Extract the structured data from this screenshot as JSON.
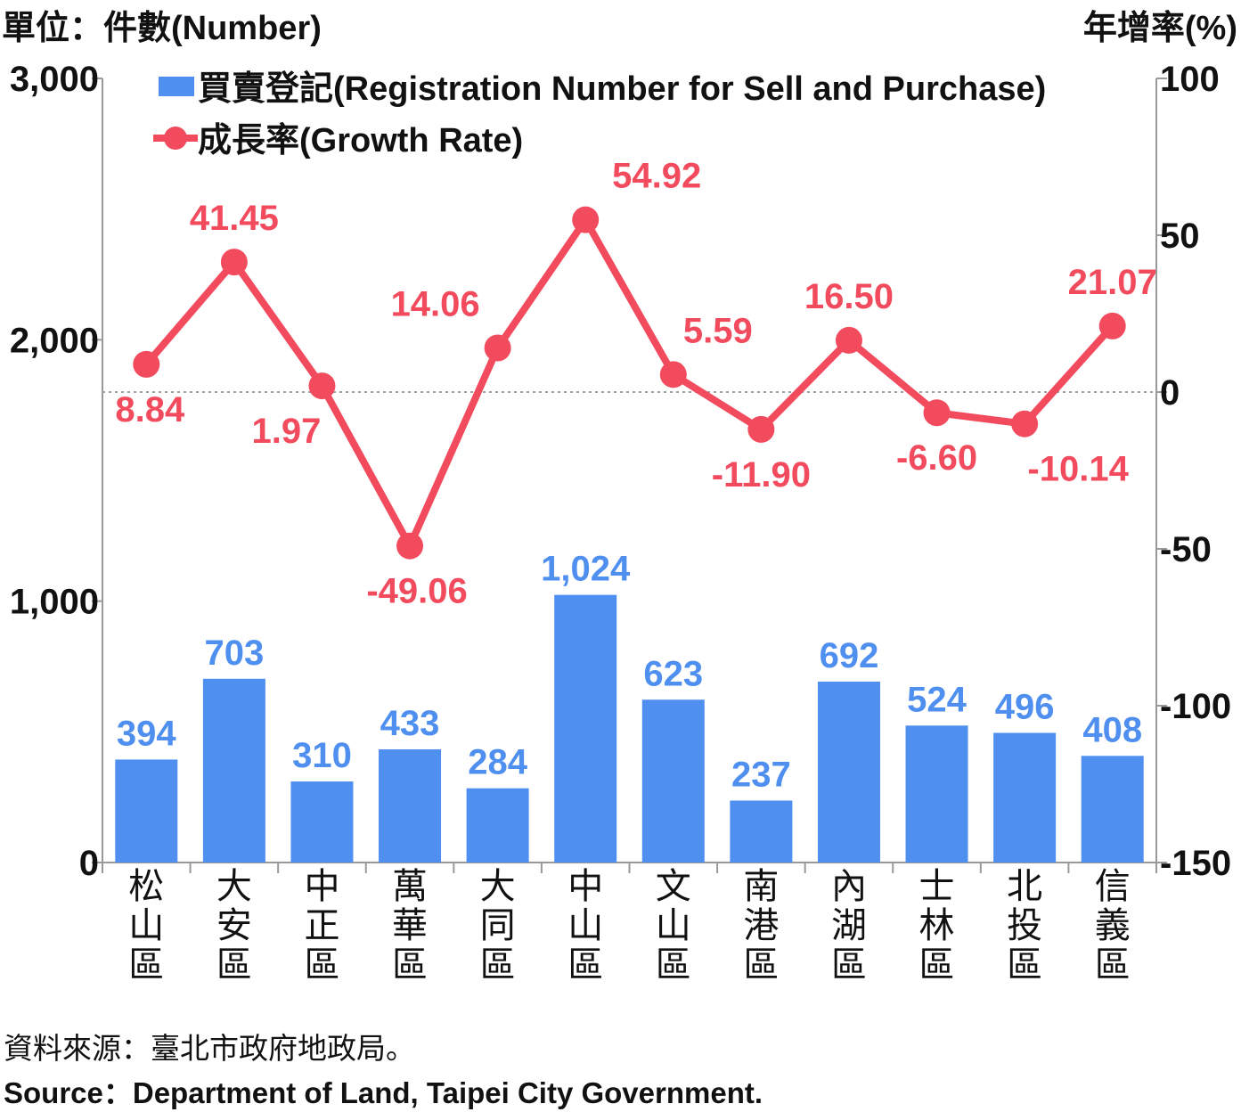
{
  "unit_left": "單位：件數(Number)",
  "unit_right": "年增率(%)",
  "source_zh": "資料來源：臺北市政府地政局。",
  "source_en": "Source：Department of Land, Taipei City Government.",
  "colors": {
    "bar": "#4f8ff0",
    "line": "#f24b5e",
    "axis": "#999999",
    "text": "#111111"
  },
  "chart_data": {
    "type": "bar+line",
    "categories": [
      "松山區",
      "大安區",
      "中正區",
      "萬華區",
      "大同區",
      "中山區",
      "文山區",
      "南港區",
      "內湖區",
      "士林區",
      "北投區",
      "信義區"
    ],
    "series": [
      {
        "name": "買賣登記(Registration Number for Sell and Purchase)",
        "type": "bar",
        "axis": "left",
        "values": [
          394,
          703,
          310,
          433,
          284,
          1024,
          623,
          237,
          692,
          524,
          496,
          408
        ],
        "labels": [
          "394",
          "703",
          "310",
          "433",
          "284",
          "1,024",
          "623",
          "237",
          "692",
          "524",
          "496",
          "408"
        ]
      },
      {
        "name": "成長率(Growth Rate)",
        "type": "line",
        "axis": "right",
        "values": [
          8.84,
          41.45,
          1.97,
          -49.06,
          14.06,
          54.92,
          5.59,
          -11.9,
          16.5,
          -6.6,
          -10.14,
          21.07
        ],
        "labels": [
          "8.84",
          "41.45",
          "1.97",
          "-49.06",
          "14.06",
          "54.92",
          "5.59",
          "-11.90",
          "16.50",
          "-6.60",
          "-10.14",
          "21.07"
        ]
      }
    ],
    "left_axis": {
      "range": [
        0,
        3000
      ],
      "ticks": [
        0,
        1000,
        2000,
        3000
      ],
      "tick_labels": [
        "0",
        "1,000",
        "2,000",
        "3,000"
      ]
    },
    "right_axis": {
      "range": [
        -150,
        100
      ],
      "ticks": [
        -150,
        -100,
        -50,
        0,
        50,
        100
      ],
      "tick_labels": [
        "-150",
        "-100",
        "-50",
        "0",
        "50",
        "100"
      ]
    },
    "zero_reference_line": true,
    "legend_position": "top-left"
  }
}
